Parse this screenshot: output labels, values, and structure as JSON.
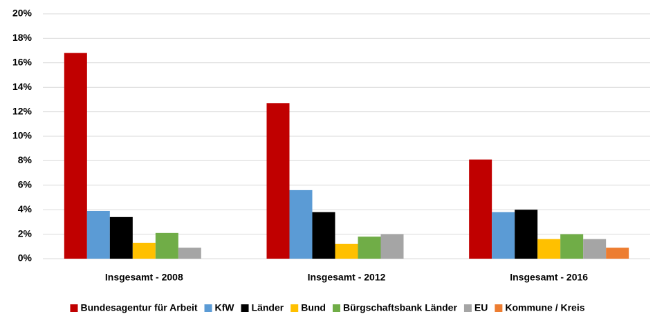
{
  "chart_data": {
    "type": "bar",
    "categories": [
      "Insgesamt - 2008",
      "Insgesamt - 2012",
      "Insgesamt - 2016"
    ],
    "series": [
      {
        "name": "Bundesagentur für Arbeit",
        "color": "#c00000",
        "values": [
          16.8,
          12.7,
          8.1
        ]
      },
      {
        "name": "KfW",
        "color": "#5b9bd5",
        "values": [
          3.9,
          5.6,
          3.8
        ]
      },
      {
        "name": "Länder",
        "color": "#000000",
        "values": [
          3.4,
          3.8,
          4.0
        ]
      },
      {
        "name": "Bund",
        "color": "#ffc000",
        "values": [
          1.3,
          1.2,
          1.6
        ]
      },
      {
        "name": "Bürgschaftsbank Länder",
        "color": "#70ad47",
        "values": [
          2.1,
          1.8,
          2.0
        ]
      },
      {
        "name": "EU",
        "color": "#a5a5a5",
        "values": [
          0.9,
          2.0,
          1.6
        ]
      },
      {
        "name": "Kommune / Kreis",
        "color": "#ed7d31",
        "values": [
          null,
          null,
          0.9
        ]
      }
    ],
    "ylim": [
      0,
      20
    ],
    "yticks": [
      {
        "value": 0,
        "label": "0%"
      },
      {
        "value": 2,
        "label": "2%"
      },
      {
        "value": 4,
        "label": "4%"
      },
      {
        "value": 6,
        "label": "6%"
      },
      {
        "value": 8,
        "label": "8%"
      },
      {
        "value": 10,
        "label": "10%"
      },
      {
        "value": 12,
        "label": "12%"
      },
      {
        "value": 14,
        "label": "14%"
      },
      {
        "value": 16,
        "label": "16%"
      },
      {
        "value": 18,
        "label": "18%"
      },
      {
        "value": 20,
        "label": "20%"
      }
    ],
    "grid": true,
    "legend": "bottom"
  }
}
